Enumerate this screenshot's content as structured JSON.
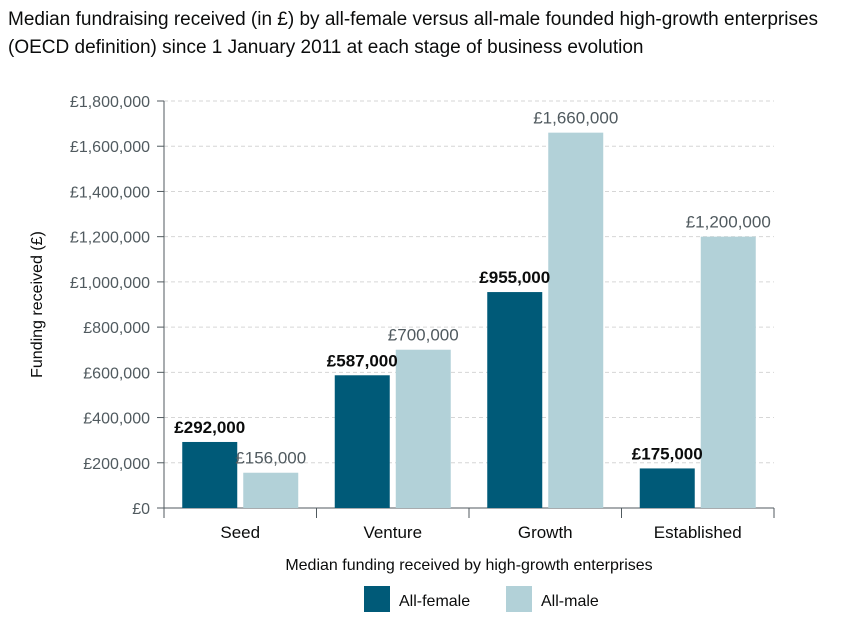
{
  "chart_data": {
    "type": "bar",
    "title": "Median fundraising received (in £) by all-female versus all-male founded high-growth enterprises (OECD definition) since 1 January 2011 at each stage of business evolution",
    "xlabel": "Median funding received by high-growth enterprises",
    "ylabel": "Funding received (£)",
    "ylim": [
      0,
      1800000
    ],
    "y_ticks": [
      0,
      200000,
      400000,
      600000,
      800000,
      1000000,
      1200000,
      1400000,
      1600000,
      1800000
    ],
    "y_tick_labels": [
      "£0",
      "£200,000",
      "£400,000",
      "£600,000",
      "£800,000",
      "£1,000,000",
      "£1,200,000",
      "£1,400,000",
      "£1,600,000",
      "£1,800,000"
    ],
    "categories": [
      "Seed",
      "Venture",
      "Growth",
      "Established"
    ],
    "series": [
      {
        "name": "All-female",
        "color": "#005a78",
        "values": [
          292000,
          587000,
          955000,
          175000
        ],
        "labels": [
          "£292,000",
          "£587,000",
          "£955,000",
          "£175,000"
        ]
      },
      {
        "name": "All-male",
        "color": "#b2d1d8",
        "values": [
          156000,
          700000,
          1660000,
          1200000
        ],
        "labels": [
          "£156,000",
          "£700,000",
          "£1,660,000",
          "£1,200,000"
        ]
      }
    ],
    "legend": "bottom-center",
    "grid": true
  }
}
